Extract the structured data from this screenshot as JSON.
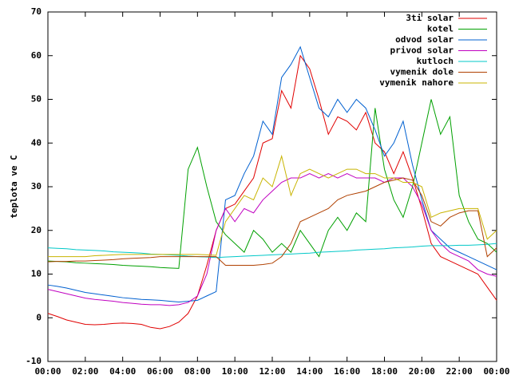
{
  "chart_data": {
    "type": "line",
    "ylabel": "teplota ve C",
    "x": [
      0,
      0.5,
      1,
      1.5,
      2,
      2.5,
      3,
      3.5,
      4,
      4.5,
      5,
      5.5,
      6,
      6.5,
      7,
      7.5,
      8,
      8.5,
      9,
      9.5,
      10,
      10.5,
      11,
      11.5,
      12,
      12.5,
      13,
      13.5,
      14,
      14.5,
      15,
      15.5,
      16,
      16.5,
      17,
      17.5,
      18,
      18.5,
      19,
      19.5,
      20,
      20.5,
      21,
      21.5,
      22,
      22.5,
      23,
      23.5,
      24
    ],
    "xlim": [
      0,
      24
    ],
    "xticks": [
      {
        "value": 0,
        "label": "00:00"
      },
      {
        "value": 2,
        "label": "02:00"
      },
      {
        "value": 4,
        "label": "04:00"
      },
      {
        "value": 6,
        "label": "06:00"
      },
      {
        "value": 8,
        "label": "08:00"
      },
      {
        "value": 10,
        "label": "10:00"
      },
      {
        "value": 12,
        "label": "12:00"
      },
      {
        "value": 14,
        "label": "14:00"
      },
      {
        "value": 16,
        "label": "16:00"
      },
      {
        "value": 18,
        "label": "18:00"
      },
      {
        "value": 20,
        "label": "20:00"
      },
      {
        "value": 22,
        "label": "22:00"
      },
      {
        "value": 24,
        "label": "00:00"
      }
    ],
    "ylim": [
      -10,
      70
    ],
    "yticks": [
      -10,
      0,
      10,
      20,
      30,
      40,
      50,
      60,
      70
    ],
    "legend": "upper right",
    "series": [
      {
        "name": "3ti solar",
        "color": "#e00000",
        "values": [
          1,
          0.3,
          -0.5,
          -1,
          -1.5,
          -1.6,
          -1.5,
          -1.3,
          -1.2,
          -1.3,
          -1.5,
          -2.2,
          -2.5,
          -2,
          -1,
          1,
          5,
          12,
          20,
          25,
          26,
          29,
          32,
          40,
          41,
          52,
          48,
          60,
          57,
          50,
          42,
          46,
          45,
          43,
          47,
          40,
          38,
          33,
          38,
          32,
          25,
          17,
          14,
          13,
          12,
          11,
          10,
          7,
          4
        ]
      },
      {
        "name": "kotel",
        "color": "#00a000",
        "values": [
          13,
          12.9,
          12.8,
          12.6,
          12.5,
          12.4,
          12.3,
          12.2,
          12,
          11.9,
          11.8,
          11.7,
          11.5,
          11.4,
          11.3,
          34,
          39,
          30,
          22,
          19,
          17,
          15,
          20,
          18,
          15,
          17,
          15,
          20,
          17,
          14,
          20,
          23,
          20,
          24,
          22,
          48,
          34,
          27,
          23,
          30,
          40,
          50,
          42,
          46,
          28,
          22,
          18,
          17,
          15
        ]
      },
      {
        "name": "odvod solar",
        "color": "#0060d0",
        "values": [
          7.5,
          7.2,
          6.8,
          6.3,
          5.8,
          5.5,
          5.2,
          4.9,
          4.6,
          4.4,
          4.2,
          4.1,
          4,
          3.8,
          3.6,
          3.8,
          4,
          5,
          6,
          27,
          28,
          33,
          37,
          45,
          42,
          55,
          58,
          62,
          55,
          48,
          46,
          50,
          47,
          50,
          48,
          43,
          37,
          40,
          45,
          35,
          27,
          20,
          18,
          16,
          15,
          14,
          13,
          12,
          11
        ]
      },
      {
        "name": "privod solar",
        "color": "#c000c0",
        "values": [
          6.5,
          6,
          5.5,
          5,
          4.5,
          4.2,
          4,
          3.8,
          3.5,
          3.3,
          3.1,
          3,
          3,
          2.8,
          3,
          3.5,
          5,
          10,
          20,
          25,
          22,
          25,
          24,
          27,
          29,
          31,
          32,
          32,
          33,
          32,
          33,
          32,
          33,
          32,
          32,
          32,
          31,
          32,
          32,
          30,
          26,
          20,
          17,
          15,
          14,
          13,
          11,
          10,
          9.5
        ]
      },
      {
        "name": "kutloch",
        "color": "#00c8c8",
        "values": [
          16,
          15.9,
          15.8,
          15.6,
          15.5,
          15.4,
          15.3,
          15.1,
          15,
          14.9,
          14.8,
          14.6,
          14.5,
          14.4,
          14.3,
          14.1,
          14,
          13.9,
          13.8,
          13.9,
          14,
          14.1,
          14.2,
          14.3,
          14.4,
          14.5,
          14.6,
          14.7,
          14.8,
          15,
          15.1,
          15.2,
          15.3,
          15.5,
          15.6,
          15.7,
          15.8,
          16,
          16.1,
          16.2,
          16.4,
          16.5,
          16.5,
          16.5,
          16.6,
          16.6,
          16.7,
          16.8,
          17
        ]
      },
      {
        "name": "vymenik dole",
        "color": "#b04000",
        "values": [
          12.8,
          12.9,
          12.9,
          13,
          13,
          13.1,
          13.2,
          13.3,
          13.5,
          13.6,
          13.7,
          13.8,
          14,
          14,
          14,
          14,
          14,
          14,
          14,
          12,
          12,
          12,
          12,
          12.2,
          12.5,
          14,
          17,
          22,
          23,
          24,
          25,
          27,
          28,
          28.5,
          29,
          30,
          31,
          31.5,
          32,
          31.5,
          28,
          22,
          21,
          23,
          24,
          24.5,
          24.5,
          14,
          16
        ]
      },
      {
        "name": "vymenik nahore",
        "color": "#c8b400",
        "values": [
          14,
          14,
          14,
          14,
          14,
          14.2,
          14.3,
          14.4,
          14.5,
          14.5,
          14.5,
          14.5,
          14.5,
          14.5,
          14.5,
          14.5,
          14.5,
          14.4,
          14.3,
          22,
          25,
          28,
          27,
          32,
          30,
          37,
          28,
          33,
          34,
          33,
          32,
          33,
          34,
          34,
          33,
          33,
          32,
          32,
          31,
          31,
          30,
          23,
          24,
          24.5,
          25,
          25,
          25,
          18,
          20
        ]
      }
    ]
  }
}
